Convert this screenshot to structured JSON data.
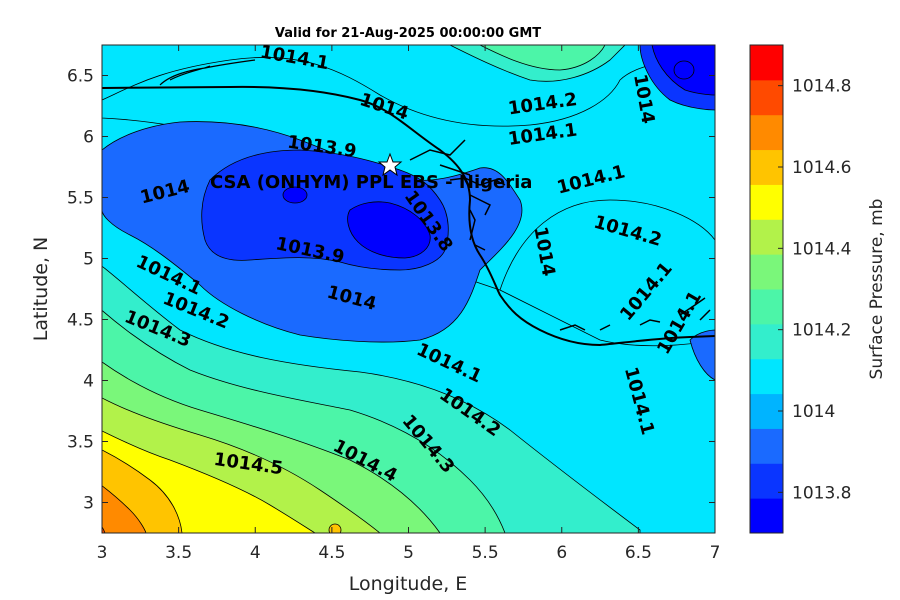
{
  "title": "Valid for 21-Aug-2025 00:00:00 GMT",
  "x_axis": {
    "label": "Longitude, E",
    "range": [
      3,
      7
    ],
    "ticks": [
      "3",
      "3.5",
      "4",
      "4.5",
      "5",
      "5.5",
      "6",
      "6.5",
      "7"
    ]
  },
  "y_axis": {
    "label": "Latitude, N",
    "range": [
      2.75,
      6.75
    ],
    "ticks": [
      "3",
      "3.5",
      "4",
      "4.5",
      "5",
      "5.5",
      "6",
      "6.5"
    ]
  },
  "colorbar": {
    "label": "Surface Pressure, mb",
    "range": [
      1013.7,
      1014.9
    ],
    "ticks": [
      "1013.8",
      "1014",
      "1014.2",
      "1014.4",
      "1014.6",
      "1014.8"
    ],
    "colors": [
      "#0000ff",
      "#0a35ff",
      "#1a6aff",
      "#00b4ff",
      "#00e6ff",
      "#33eecc",
      "#4cf5a8",
      "#7af77a",
      "#b2f24a",
      "#ffff00",
      "#ffc400",
      "#ff8a00",
      "#ff4a00",
      "#ff0000"
    ]
  },
  "site": {
    "label": "CSA (ONHYM) PPL EBS - Nigeria",
    "lon": 4.88,
    "lat": 5.75
  },
  "contour_labels": [
    {
      "text": "1014.1",
      "lon": 4.25,
      "lat": 6.6
    },
    {
      "text": "1014",
      "lon": 4.83,
      "lat": 6.2
    },
    {
      "text": "1014.2",
      "lon": 5.88,
      "lat": 6.22
    },
    {
      "text": "1014.1",
      "lon": 5.88,
      "lat": 5.97
    },
    {
      "text": "1014",
      "lon": 6.5,
      "lat": 6.3
    },
    {
      "text": "1013.9",
      "lon": 4.43,
      "lat": 5.87
    },
    {
      "text": "1014",
      "lon": 3.42,
      "lat": 5.5
    },
    {
      "text": "1013.8",
      "lon": 5.1,
      "lat": 5.28
    },
    {
      "text": "1013.9",
      "lon": 4.35,
      "lat": 5.02
    },
    {
      "text": "1014.1",
      "lon": 6.2,
      "lat": 5.6
    },
    {
      "text": "1014.2",
      "lon": 6.42,
      "lat": 5.18
    },
    {
      "text": "1014.1",
      "lon": 3.42,
      "lat": 4.82
    },
    {
      "text": "1014",
      "lon": 4.62,
      "lat": 4.63
    },
    {
      "text": "1014.2",
      "lon": 3.6,
      "lat": 4.53
    },
    {
      "text": "1014.3",
      "lon": 3.35,
      "lat": 4.38
    },
    {
      "text": "1014",
      "lon": 5.85,
      "lat": 5.05
    },
    {
      "text": "1014.1",
      "lon": 6.58,
      "lat": 4.7
    },
    {
      "text": "1014.1",
      "lon": 6.8,
      "lat": 4.45
    },
    {
      "text": "1014.1",
      "lon": 5.25,
      "lat": 4.1
    },
    {
      "text": "1014.2",
      "lon": 5.38,
      "lat": 3.7
    },
    {
      "text": "1014.3",
      "lon": 5.1,
      "lat": 3.45
    },
    {
      "text": "1014.4",
      "lon": 4.7,
      "lat": 3.3
    },
    {
      "text": "1014.1",
      "lon": 6.47,
      "lat": 3.82
    },
    {
      "text": "1014.5",
      "lon": 3.95,
      "lat": 3.27
    }
  ]
}
